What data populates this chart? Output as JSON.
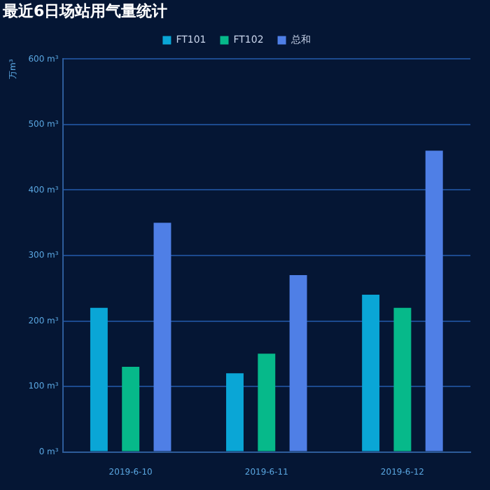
{
  "chart_data": {
    "type": "bar",
    "title": "最近6日场站用气量统计",
    "ylabel": "万m³",
    "categories": [
      "2019-6-10",
      "2019-6-11",
      "2019-6-12"
    ],
    "series": [
      {
        "name": "FT101",
        "color": "#0aa6d6",
        "values": [
          220,
          120,
          240
        ]
      },
      {
        "name": "FT102",
        "color": "#06b98a",
        "values": [
          130,
          150,
          220
        ]
      },
      {
        "name": "总和",
        "color": "#4f7fe6",
        "values": [
          350,
          270,
          460
        ]
      }
    ],
    "ylim": [
      0,
      600
    ],
    "yticks": [
      {
        "value": 0,
        "label": "0 m³"
      },
      {
        "value": 100,
        "label": "100 m³"
      },
      {
        "value": 200,
        "label": "200 m³"
      },
      {
        "value": 300,
        "label": "300 m³"
      },
      {
        "value": 400,
        "label": "400 m³"
      },
      {
        "value": 500,
        "label": "500 m³"
      },
      {
        "value": 600,
        "label": "600 m³"
      }
    ],
    "grid": "y",
    "legend": "top"
  }
}
